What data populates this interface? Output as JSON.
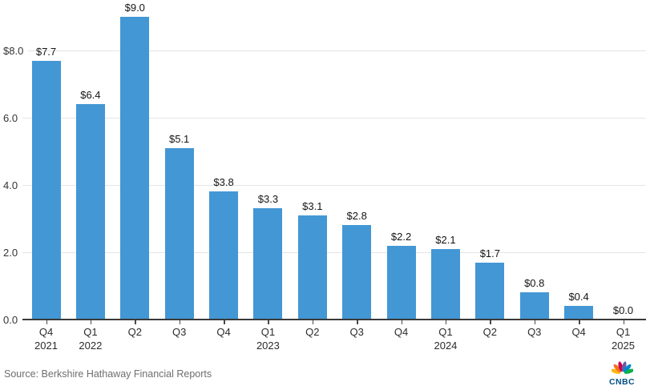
{
  "chart_data": {
    "type": "bar",
    "title": "",
    "categories": [
      "Q4 2021",
      "Q1 2022",
      "Q2 2022",
      "Q3 2022",
      "Q4 2022",
      "Q1 2023",
      "Q2 2023",
      "Q3 2023",
      "Q4 2023",
      "Q1 2024",
      "Q2 2024",
      "Q3 2024",
      "Q4 2024",
      "Q1 2025"
    ],
    "x_tick_lines": [
      {
        "quarter": "Q4",
        "year": "2021"
      },
      {
        "quarter": "Q1",
        "year": "2022"
      },
      {
        "quarter": "Q2",
        "year": ""
      },
      {
        "quarter": "Q3",
        "year": ""
      },
      {
        "quarter": "Q4",
        "year": ""
      },
      {
        "quarter": "Q1",
        "year": "2023"
      },
      {
        "quarter": "Q2",
        "year": ""
      },
      {
        "quarter": "Q3",
        "year": ""
      },
      {
        "quarter": "Q4",
        "year": ""
      },
      {
        "quarter": "Q1",
        "year": "2024"
      },
      {
        "quarter": "Q2",
        "year": ""
      },
      {
        "quarter": "Q3",
        "year": ""
      },
      {
        "quarter": "Q4",
        "year": ""
      },
      {
        "quarter": "Q1",
        "year": "2025"
      }
    ],
    "values": [
      7.7,
      6.4,
      9.0,
      5.1,
      3.8,
      3.3,
      3.1,
      2.8,
      2.2,
      2.1,
      1.7,
      0.8,
      0.4,
      0.0
    ],
    "bar_labels": [
      "$7.7",
      "$6.4",
      "$9.0",
      "$5.1",
      "$3.8",
      "$3.3",
      "$3.1",
      "$2.8",
      "$2.2",
      "$2.1",
      "$1.7",
      "$0.8",
      "$0.4",
      "$0.0"
    ],
    "y_ticks": [
      {
        "value": 8,
        "label": "$8.0"
      },
      {
        "value": 6,
        "label": "6.0"
      },
      {
        "value": 4,
        "label": "4.0"
      },
      {
        "value": 2,
        "label": "2.0"
      },
      {
        "value": 0,
        "label": "0.0"
      }
    ],
    "ylim": [
      0,
      9.3
    ],
    "xlabel": "",
    "ylabel": "",
    "grid": true,
    "legend": "none",
    "bar_color": "#4397d4",
    "gridline_color": "#e5e5e5",
    "axis_line_color": "#3a3a3a"
  },
  "footer": {
    "source": "Source: Berkshire Hathaway Financial Reports",
    "logo_text": "CNBC",
    "logo_wordmark_color": "#005083",
    "peacock_feather_colors": [
      "#FCB711",
      "#F37021",
      "#CC004C",
      "#6460AA",
      "#0089D0",
      "#0DB14B"
    ]
  }
}
